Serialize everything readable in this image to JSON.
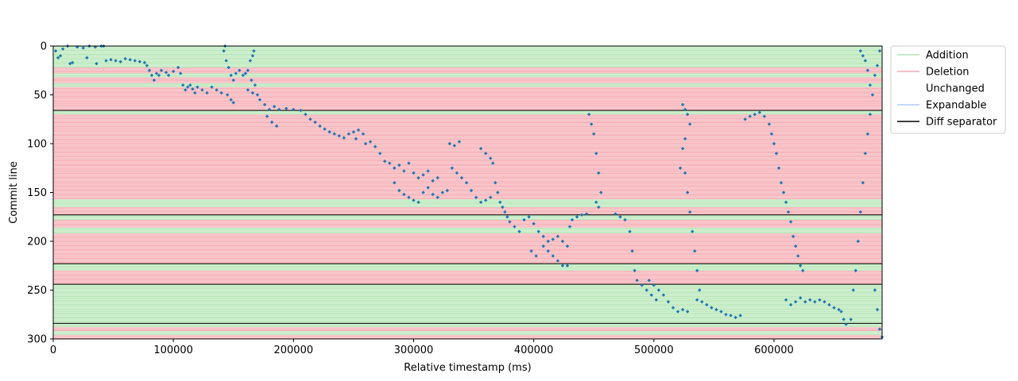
{
  "chart_data": {
    "type": "scatter",
    "title": "",
    "xlabel": "Relative timestamp (ms)",
    "ylabel": "Commit line",
    "xlim": [
      0,
      690000
    ],
    "ylim": [
      300,
      0
    ],
    "y_inverted": true,
    "xticks": [
      0,
      100000,
      200000,
      300000,
      400000,
      500000,
      600000
    ],
    "xtick_labels": [
      "0",
      "100000",
      "200000",
      "300000",
      "400000",
      "500000",
      "600000"
    ],
    "yticks": [
      0,
      50,
      100,
      150,
      200,
      250,
      300
    ],
    "ytick_labels": [
      "0",
      "50",
      "100",
      "150",
      "200",
      "250",
      "300"
    ],
    "grid": false,
    "legend_position": "outside-top-right",
    "legend": [
      {
        "name": "Addition",
        "color": "#b3e6b3"
      },
      {
        "name": "Deletion",
        "color": "#f4a9b0"
      },
      {
        "name": "Unchanged",
        "color": "#ffffff"
      },
      {
        "name": "Expandable",
        "color": "#aecbf2"
      },
      {
        "name": "Diff separator",
        "color": "#000000"
      }
    ],
    "marker_color": "#1f77b4",
    "diff_separators": [
      66,
      173,
      223,
      244,
      284
    ],
    "bands": [
      {
        "kind": "Addition",
        "start": 0,
        "end": 17
      },
      {
        "kind": "Addition",
        "start": 17,
        "end": 22
      },
      {
        "kind": "Deletion",
        "start": 22,
        "end": 28
      },
      {
        "kind": "Addition",
        "start": 28,
        "end": 32
      },
      {
        "kind": "Deletion",
        "start": 32,
        "end": 38
      },
      {
        "kind": "Addition",
        "start": 38,
        "end": 42
      },
      {
        "kind": "Deletion",
        "start": 42,
        "end": 66
      },
      {
        "kind": "Addition",
        "start": 66,
        "end": 70
      },
      {
        "kind": "Deletion",
        "start": 70,
        "end": 82
      },
      {
        "kind": "Deletion",
        "start": 82,
        "end": 90
      },
      {
        "kind": "Deletion",
        "start": 90,
        "end": 157
      },
      {
        "kind": "Addition",
        "start": 157,
        "end": 165
      },
      {
        "kind": "Deletion",
        "start": 165,
        "end": 173
      },
      {
        "kind": "Addition",
        "start": 173,
        "end": 178
      },
      {
        "kind": "Deletion",
        "start": 178,
        "end": 186
      },
      {
        "kind": "Addition",
        "start": 186,
        "end": 192
      },
      {
        "kind": "Deletion",
        "start": 192,
        "end": 223
      },
      {
        "kind": "Addition",
        "start": 223,
        "end": 230
      },
      {
        "kind": "Deletion",
        "start": 230,
        "end": 244
      },
      {
        "kind": "Addition",
        "start": 244,
        "end": 284
      },
      {
        "kind": "Addition",
        "start": 284,
        "end": 288
      },
      {
        "kind": "Deletion",
        "start": 288,
        "end": 292
      },
      {
        "kind": "Addition",
        "start": 292,
        "end": 296
      },
      {
        "kind": "Deletion",
        "start": 296,
        "end": 300
      }
    ],
    "points": [
      [
        2000,
        5
      ],
      [
        4000,
        12
      ],
      [
        6000,
        10
      ],
      [
        8000,
        3
      ],
      [
        12000,
        0
      ],
      [
        14000,
        18
      ],
      [
        16000,
        17
      ],
      [
        20000,
        1
      ],
      [
        25000,
        2
      ],
      [
        30000,
        0
      ],
      [
        35000,
        1
      ],
      [
        40000,
        0
      ],
      [
        42000,
        0
      ],
      [
        28000,
        12
      ],
      [
        36000,
        18
      ],
      [
        44000,
        15
      ],
      [
        48000,
        14
      ],
      [
        52000,
        15
      ],
      [
        56000,
        16
      ],
      [
        60000,
        13
      ],
      [
        64000,
        14
      ],
      [
        68000,
        15
      ],
      [
        72000,
        16
      ],
      [
        76000,
        17
      ],
      [
        78000,
        20
      ],
      [
        80000,
        25
      ],
      [
        82000,
        30
      ],
      [
        84000,
        35
      ],
      [
        86000,
        28
      ],
      [
        88000,
        30
      ],
      [
        90000,
        25
      ],
      [
        94000,
        27
      ],
      [
        96000,
        30
      ],
      [
        100000,
        26
      ],
      [
        104000,
        22
      ],
      [
        106000,
        28
      ],
      [
        108000,
        40
      ],
      [
        110000,
        45
      ],
      [
        112000,
        42
      ],
      [
        114000,
        40
      ],
      [
        116000,
        44
      ],
      [
        118000,
        48
      ],
      [
        120000,
        42
      ],
      [
        124000,
        45
      ],
      [
        128000,
        48
      ],
      [
        132000,
        42
      ],
      [
        136000,
        45
      ],
      [
        140000,
        48
      ],
      [
        142000,
        5
      ],
      [
        143000,
        0
      ],
      [
        144000,
        15
      ],
      [
        146000,
        22
      ],
      [
        148000,
        30
      ],
      [
        150000,
        35
      ],
      [
        152000,
        28
      ],
      [
        155000,
        25
      ],
      [
        158000,
        30
      ],
      [
        160000,
        28
      ],
      [
        162000,
        25
      ],
      [
        164000,
        15
      ],
      [
        166000,
        10
      ],
      [
        167000,
        5
      ],
      [
        145000,
        50
      ],
      [
        148000,
        55
      ],
      [
        150000,
        58
      ],
      [
        160000,
        28
      ],
      [
        165000,
        35
      ],
      [
        168000,
        40
      ],
      [
        162000,
        45
      ],
      [
        166000,
        48
      ],
      [
        170000,
        50
      ],
      [
        172000,
        55
      ],
      [
        176000,
        60
      ],
      [
        180000,
        65
      ],
      [
        184000,
        62
      ],
      [
        178000,
        72
      ],
      [
        182000,
        78
      ],
      [
        186000,
        82
      ],
      [
        188000,
        65
      ],
      [
        194000,
        64
      ],
      [
        200000,
        65
      ],
      [
        206000,
        66
      ],
      [
        210000,
        70
      ],
      [
        214000,
        75
      ],
      [
        218000,
        78
      ],
      [
        222000,
        82
      ],
      [
        226000,
        85
      ],
      [
        230000,
        88
      ],
      [
        234000,
        90
      ],
      [
        238000,
        92
      ],
      [
        242000,
        94
      ],
      [
        246000,
        90
      ],
      [
        250000,
        88
      ],
      [
        254000,
        86
      ],
      [
        258000,
        90
      ],
      [
        252000,
        95
      ],
      [
        260000,
        100
      ],
      [
        264000,
        98
      ],
      [
        268000,
        103
      ],
      [
        272000,
        110
      ],
      [
        276000,
        118
      ],
      [
        280000,
        120
      ],
      [
        284000,
        125
      ],
      [
        288000,
        122
      ],
      [
        292000,
        128
      ],
      [
        296000,
        120
      ],
      [
        300000,
        130
      ],
      [
        304000,
        135
      ],
      [
        308000,
        132
      ],
      [
        312000,
        128
      ],
      [
        316000,
        138
      ],
      [
        320000,
        135
      ],
      [
        284000,
        140
      ],
      [
        288000,
        148
      ],
      [
        292000,
        152
      ],
      [
        296000,
        155
      ],
      [
        300000,
        158
      ],
      [
        304000,
        160
      ],
      [
        308000,
        150
      ],
      [
        312000,
        145
      ],
      [
        316000,
        152
      ],
      [
        320000,
        155
      ],
      [
        324000,
        150
      ],
      [
        328000,
        148
      ],
      [
        332000,
        125
      ],
      [
        336000,
        130
      ],
      [
        340000,
        135
      ],
      [
        344000,
        140
      ],
      [
        348000,
        148
      ],
      [
        352000,
        155
      ],
      [
        356000,
        160
      ],
      [
        360000,
        158
      ],
      [
        364000,
        155
      ],
      [
        330000,
        100
      ],
      [
        334000,
        102
      ],
      [
        338000,
        98
      ],
      [
        356000,
        105
      ],
      [
        360000,
        110
      ],
      [
        364000,
        115
      ],
      [
        366000,
        120
      ],
      [
        368000,
        140
      ],
      [
        370000,
        150
      ],
      [
        372000,
        160
      ],
      [
        374000,
        165
      ],
      [
        376000,
        170
      ],
      [
        378000,
        175
      ],
      [
        380000,
        180
      ],
      [
        384000,
        185
      ],
      [
        388000,
        190
      ],
      [
        392000,
        178
      ],
      [
        396000,
        175
      ],
      [
        400000,
        182
      ],
      [
        404000,
        190
      ],
      [
        408000,
        195
      ],
      [
        412000,
        200
      ],
      [
        416000,
        198
      ],
      [
        420000,
        195
      ],
      [
        424000,
        200
      ],
      [
        428000,
        205
      ],
      [
        398000,
        210
      ],
      [
        402000,
        215
      ],
      [
        408000,
        205
      ],
      [
        412000,
        210
      ],
      [
        416000,
        215
      ],
      [
        420000,
        220
      ],
      [
        424000,
        225
      ],
      [
        428000,
        225
      ],
      [
        430000,
        185
      ],
      [
        432000,
        178
      ],
      [
        436000,
        175
      ],
      [
        440000,
        173
      ],
      [
        444000,
        172
      ],
      [
        446000,
        70
      ],
      [
        448000,
        80
      ],
      [
        450000,
        90
      ],
      [
        452000,
        110
      ],
      [
        454000,
        130
      ],
      [
        456000,
        150
      ],
      [
        452000,
        160
      ],
      [
        454000,
        165
      ],
      [
        468000,
        172
      ],
      [
        472000,
        175
      ],
      [
        476000,
        178
      ],
      [
        480000,
        190
      ],
      [
        482000,
        210
      ],
      [
        484000,
        230
      ],
      [
        486000,
        240
      ],
      [
        490000,
        245
      ],
      [
        494000,
        250
      ],
      [
        498000,
        255
      ],
      [
        502000,
        260
      ],
      [
        496000,
        240
      ],
      [
        500000,
        245
      ],
      [
        504000,
        250
      ],
      [
        508000,
        255
      ],
      [
        512000,
        262
      ],
      [
        516000,
        268
      ],
      [
        520000,
        272
      ],
      [
        524000,
        270
      ],
      [
        528000,
        272
      ],
      [
        524000,
        60
      ],
      [
        526000,
        65
      ],
      [
        528000,
        70
      ],
      [
        530000,
        80
      ],
      [
        526000,
        95
      ],
      [
        524000,
        105
      ],
      [
        522000,
        125
      ],
      [
        526000,
        130
      ],
      [
        528000,
        150
      ],
      [
        530000,
        170
      ],
      [
        532000,
        190
      ],
      [
        534000,
        210
      ],
      [
        536000,
        230
      ],
      [
        538000,
        250
      ],
      [
        536000,
        260
      ],
      [
        540000,
        262
      ],
      [
        544000,
        265
      ],
      [
        548000,
        268
      ],
      [
        552000,
        270
      ],
      [
        556000,
        272
      ],
      [
        560000,
        275
      ],
      [
        564000,
        276
      ],
      [
        568000,
        278
      ],
      [
        572000,
        276
      ],
      [
        576000,
        75
      ],
      [
        580000,
        72
      ],
      [
        584000,
        70
      ],
      [
        588000,
        68
      ],
      [
        592000,
        72
      ],
      [
        596000,
        80
      ],
      [
        598000,
        90
      ],
      [
        600000,
        100
      ],
      [
        602000,
        110
      ],
      [
        604000,
        125
      ],
      [
        606000,
        140
      ],
      [
        608000,
        150
      ],
      [
        610000,
        160
      ],
      [
        612000,
        170
      ],
      [
        614000,
        180
      ],
      [
        616000,
        195
      ],
      [
        618000,
        205
      ],
      [
        620000,
        215
      ],
      [
        622000,
        225
      ],
      [
        624000,
        230
      ],
      [
        610000,
        260
      ],
      [
        614000,
        265
      ],
      [
        618000,
        262
      ],
      [
        622000,
        258
      ],
      [
        626000,
        262
      ],
      [
        630000,
        260
      ],
      [
        634000,
        262
      ],
      [
        638000,
        260
      ],
      [
        642000,
        262
      ],
      [
        646000,
        265
      ],
      [
        650000,
        268
      ],
      [
        654000,
        270
      ],
      [
        656000,
        272
      ],
      [
        658000,
        280
      ],
      [
        660000,
        285
      ],
      [
        664000,
        280
      ],
      [
        666000,
        250
      ],
      [
        668000,
        230
      ],
      [
        670000,
        200
      ],
      [
        672000,
        170
      ],
      [
        674000,
        140
      ],
      [
        676000,
        110
      ],
      [
        678000,
        90
      ],
      [
        680000,
        70
      ],
      [
        682000,
        50
      ],
      [
        684000,
        30
      ],
      [
        686000,
        20
      ],
      [
        688000,
        5
      ],
      [
        684000,
        250
      ],
      [
        686000,
        270
      ],
      [
        688000,
        290
      ],
      [
        690000,
        298
      ],
      [
        672000,
        5
      ],
      [
        674000,
        10
      ],
      [
        676000,
        15
      ],
      [
        678000,
        25
      ],
      [
        680000,
        40
      ]
    ]
  }
}
